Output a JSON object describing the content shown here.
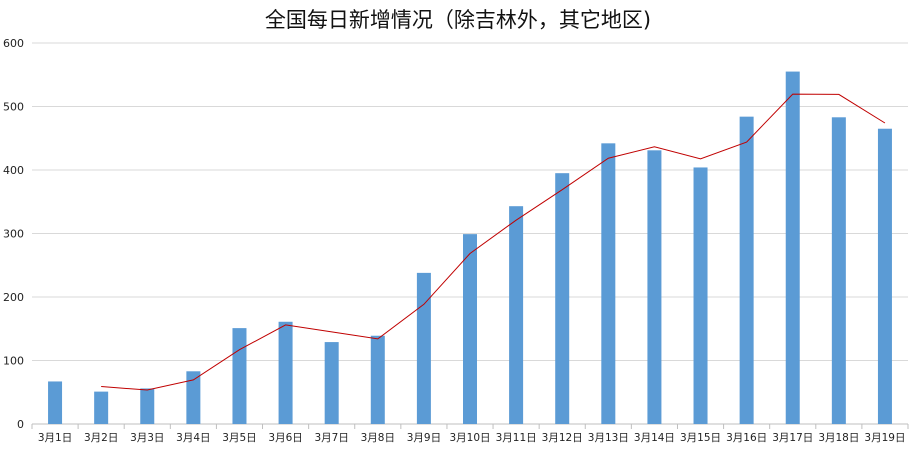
{
  "chart_data": {
    "type": "bar",
    "title": "全国每日新增情况（除吉林外，其它地区)",
    "categories": [
      "3月1日",
      "3月2日",
      "3月3日",
      "3月4日",
      "3月5日",
      "3月6日",
      "3月7日",
      "3月8日",
      "3月9日",
      "3月10日",
      "3月11日",
      "3月12日",
      "3月13日",
      "3月14日",
      "3月15日",
      "3月16日",
      "3月17日",
      "3月18日",
      "3月19日"
    ],
    "values": [
      67,
      51,
      56,
      83,
      151,
      161,
      129,
      139,
      238,
      299,
      343,
      395,
      442,
      431,
      404,
      484,
      555,
      483,
      465
    ],
    "trendline": [
      null,
      59,
      53.5,
      69.5,
      117,
      156,
      145,
      134,
      188.5,
      268.5,
      321,
      369,
      418.5,
      436.5,
      417.5,
      444,
      519.5,
      519,
      474
    ],
    "ylim": [
      0,
      600
    ],
    "yticks": [
      0,
      100,
      200,
      300,
      400,
      500,
      600
    ],
    "grid": true,
    "xlabel": "",
    "ylabel": "",
    "colors": {
      "bar": "#5b9bd5",
      "line": "#c00000",
      "grid": "#d9d9d9",
      "axis": "#bfbfbf",
      "text": "#222222"
    }
  }
}
